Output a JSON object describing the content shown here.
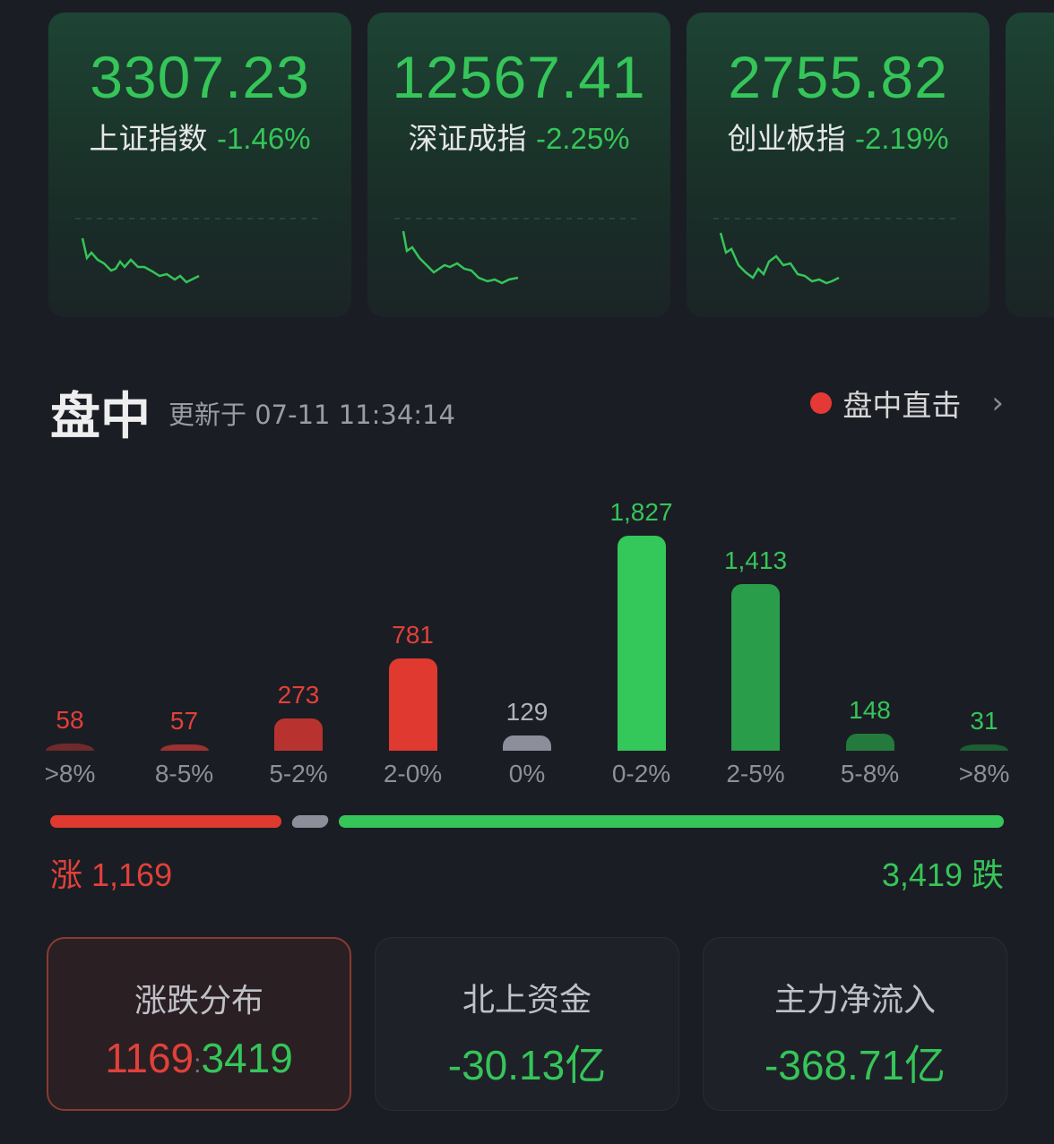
{
  "indices": [
    {
      "value": "3307.23",
      "name": "上证指数",
      "change": "-1.46%"
    },
    {
      "value": "12567.41",
      "name": "深证成指",
      "change": "-2.25%"
    },
    {
      "value": "2755.82",
      "name": "创业板指",
      "change": "-2.19%"
    }
  ],
  "section": {
    "title": "盘中",
    "updated": "更新于 07-11 11:34:14",
    "live_label": "盘中直击"
  },
  "chart_data": {
    "type": "bar",
    "categories": [
      ">8%",
      "8-5%",
      "5-2%",
      "2-0%",
      "0%",
      "0-2%",
      "2-5%",
      "5-8%",
      ">8%"
    ],
    "values": [
      58,
      57,
      273,
      781,
      129,
      1827,
      1413,
      148,
      31
    ],
    "value_labels": [
      "58",
      "57",
      "273",
      "781",
      "129",
      "1,827",
      "1,413",
      "148",
      "31"
    ],
    "colors": [
      "#6e2a2c",
      "#9b3131",
      "#b83330",
      "#e0392f",
      "#8c8e99",
      "#34c759",
      "#2a9d4b",
      "#237a3c",
      "#1d5e33"
    ]
  },
  "summary": {
    "up_label": "涨 1,169",
    "down_label": "3,419 跌",
    "up": 1169,
    "flat": 129,
    "down": 3419,
    "up_color": "#e0392f",
    "down_color": "#35c559"
  },
  "stats": [
    {
      "title": "涨跌分布",
      "up": "1169",
      "sep": ":",
      "down": "3419"
    },
    {
      "title": "北上资金",
      "value": "-30.13亿"
    },
    {
      "title": "主力净流入",
      "value": "-368.71亿"
    }
  ]
}
